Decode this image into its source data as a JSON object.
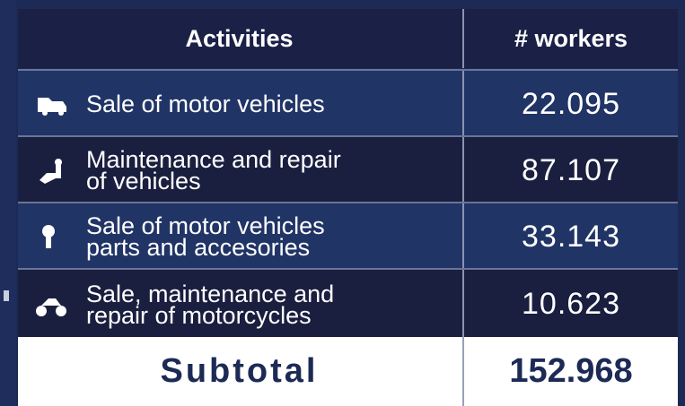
{
  "table": {
    "header": [
      "Activities",
      "# workers"
    ],
    "rows": [
      {
        "label": [
          "Sale of motor vehicles"
        ],
        "value": "22.095"
      },
      {
        "label": [
          "Maintenance and repair",
          "of vehicles"
        ],
        "value": "87.107"
      },
      {
        "label": [
          "Sale of motor vehicles",
          "parts and accesories"
        ],
        "value": "33.143"
      },
      {
        "label": [
          "Sale, maintenance and",
          "repair of motorcycles"
        ],
        "value": "10.623"
      }
    ],
    "subtotal": {
      "label": "Subtotal",
      "value": "152.968"
    }
  }
}
